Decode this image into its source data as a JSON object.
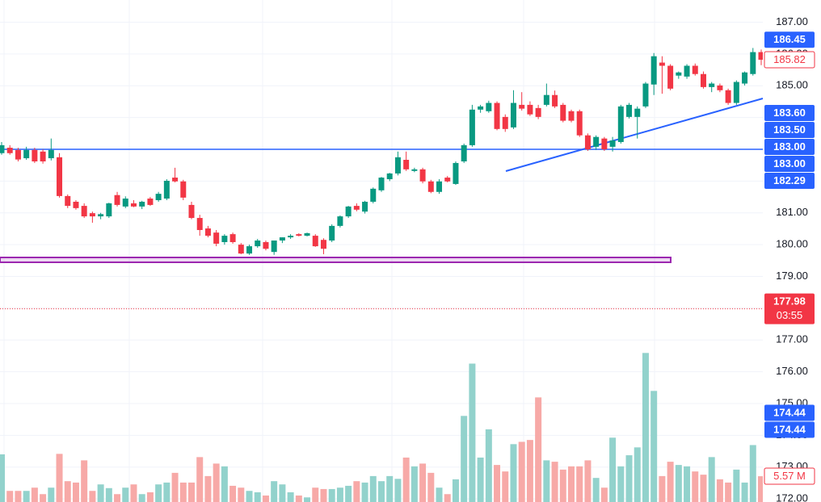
{
  "chart_data": {
    "type": "candlestick",
    "up_color": "#089981",
    "down_color": "#f23645",
    "volume_up_color": "#92d2cc",
    "volume_down_color": "#f7a9a7",
    "grid": true,
    "ylim": [
      171.9,
      187.7
    ],
    "yticks": [
      {
        "value": 172,
        "label": "172.00"
      },
      {
        "value": 173,
        "label": "173.00"
      },
      {
        "value": 174,
        "label": "174.00"
      },
      {
        "value": 175,
        "label": "175.00"
      },
      {
        "value": 176,
        "label": "176.00"
      },
      {
        "value": 177,
        "label": "177.00"
      },
      {
        "value": 178,
        "label": "178.00"
      },
      {
        "value": 179,
        "label": "179.00"
      },
      {
        "value": 180,
        "label": "180.00"
      },
      {
        "value": 181,
        "label": "181.00"
      },
      {
        "value": 182,
        "label": "182.00"
      },
      {
        "value": 183,
        "label": "183.00"
      },
      {
        "value": 184,
        "label": "184.00"
      },
      {
        "value": 185,
        "label": "185.00"
      },
      {
        "value": 186,
        "label": "186.00"
      },
      {
        "value": 187,
        "label": "187.00"
      }
    ],
    "volume_lim": [
      0,
      34
    ],
    "open": [
      182.88,
      183.05,
      182.98,
      182.72,
      182.98,
      182.93,
      182.72,
      182.75,
      181.53,
      181.35,
      181.22,
      180.99,
      180.89,
      180.89,
      181.56,
      181.2,
      181.3,
      181.2,
      181.45,
      181.4,
      181.45,
      182.11,
      181.99,
      181.25,
      180.84,
      180.51,
      180.38,
      180.08,
      180.33,
      180.0,
      179.72,
      179.95,
      180.08,
      179.77,
      180.13,
      180.23,
      180.33,
      180.28,
      180.28,
      180.15,
      180.13,
      180.59,
      180.89,
      181.22,
      181.04,
      181.35,
      181.71,
      182.06,
      182.24,
      182.67,
      182.32,
      182.37,
      181.99,
      181.66,
      182.11,
      181.91,
      182.62,
      183.13,
      184.25,
      184.2,
      184.46,
      184.02,
      183.69,
      184.4,
      184.4,
      184.3,
      184.4,
      184.71,
      184.4,
      184.2,
      184.2,
      183.44,
      183.08,
      183.34,
      183.08,
      183.23,
      184.02,
      184.02,
      184.35,
      185.04,
      185.73,
      185.63,
      185.32,
      185.29,
      185.63,
      185.37,
      184.96,
      185.01,
      184.86,
      184.46,
      185.07,
      185.37,
      186.06
    ],
    "high": [
      183.23,
      183.13,
      183.05,
      183.08,
      183.05,
      183.0,
      183.34,
      182.88,
      181.58,
      181.4,
      181.3,
      181.04,
      181.0,
      181.32,
      181.66,
      181.52,
      181.4,
      181.38,
      181.5,
      181.66,
      182.06,
      182.42,
      182.04,
      181.35,
      180.94,
      180.59,
      180.46,
      180.33,
      180.38,
      180.05,
      180.0,
      180.18,
      180.13,
      180.13,
      180.23,
      180.33,
      180.36,
      180.38,
      180.33,
      180.2,
      180.64,
      180.92,
      181.22,
      181.3,
      181.38,
      181.8,
      182.13,
      182.26,
      182.93,
      182.93,
      182.42,
      182.42,
      182.04,
      182.06,
      182.16,
      182.62,
      183.18,
      184.4,
      184.4,
      184.53,
      184.51,
      184.1,
      184.86,
      184.8,
      184.51,
      184.4,
      185.07,
      184.85,
      184.46,
      184.25,
      184.25,
      183.5,
      183.44,
      183.39,
      183.39,
      184.4,
      184.46,
      184.35,
      185.12,
      186.03,
      185.93,
      185.68,
      185.45,
      185.68,
      185.7,
      185.45,
      185.12,
      185.07,
      184.91,
      185.17,
      185.45,
      186.19,
      186.14
    ],
    "low": [
      182.83,
      182.83,
      182.62,
      182.67,
      182.57,
      182.55,
      182.65,
      181.48,
      181.15,
      181.1,
      180.84,
      180.69,
      180.8,
      180.84,
      181.2,
      181.15,
      181.18,
      181.12,
      181.22,
      181.35,
      181.4,
      181.96,
      181.4,
      180.8,
      180.28,
      180.23,
      179.95,
      180.0,
      180.03,
      179.7,
      179.68,
      179.9,
      179.82,
      179.68,
      180.05,
      180.18,
      180.26,
      180.26,
      179.93,
      179.7,
      180.08,
      180.54,
      180.84,
      181.05,
      180.98,
      181.3,
      181.66,
      182.0,
      182.18,
      182.32,
      182.28,
      181.93,
      181.62,
      181.6,
      181.96,
      181.88,
      182.57,
      183.08,
      184.15,
      184.15,
      183.6,
      183.55,
      183.64,
      184.22,
      184.05,
      183.95,
      184.35,
      184.3,
      183.85,
      183.85,
      183.39,
      182.95,
      182.98,
      182.95,
      182.93,
      183.18,
      183.97,
      183.34,
      184.3,
      184.71,
      184.75,
      184.86,
      185.22,
      185.22,
      185.32,
      184.91,
      184.8,
      184.8,
      184.4,
      184.4,
      185.01,
      185.32,
      185.65
    ],
    "close": [
      183.13,
      182.88,
      182.68,
      182.98,
      182.62,
      182.62,
      182.98,
      181.53,
      181.22,
      181.15,
      180.89,
      180.89,
      180.96,
      181.3,
      181.25,
      181.45,
      181.2,
      181.35,
      181.25,
      181.6,
      182.01,
      181.99,
      181.48,
      180.84,
      180.46,
      180.28,
      180.03,
      180.28,
      180.08,
      179.72,
      179.95,
      180.13,
      179.87,
      180.13,
      180.23,
      180.28,
      180.28,
      180.36,
      179.95,
      179.87,
      180.59,
      180.89,
      181.2,
      181.1,
      181.35,
      181.76,
      182.11,
      182.24,
      182.75,
      182.37,
      182.37,
      181.99,
      181.66,
      181.99,
      181.99,
      182.57,
      183.13,
      184.25,
      184.35,
      184.46,
      183.64,
      183.64,
      184.46,
      184.28,
      184.1,
      184.02,
      184.71,
      184.35,
      183.9,
      183.9,
      183.44,
      183.0,
      183.39,
      183.0,
      183.28,
      184.35,
      184.4,
      184.28,
      185.07,
      185.93,
      185.63,
      184.91,
      185.42,
      185.63,
      185.37,
      184.96,
      185.07,
      184.86,
      184.46,
      185.12,
      185.42,
      186.06,
      185.82
    ],
    "volume": [
      10.3,
      2.4,
      2.4,
      2.4,
      3.1,
      1.7,
      3.1,
      10.4,
      4.5,
      4.2,
      9.0,
      2.4,
      3.8,
      3.0,
      1.7,
      3.1,
      3.8,
      1.7,
      2.1,
      3.8,
      4.2,
      6.3,
      4.2,
      4.2,
      9.7,
      5.6,
      8.3,
      7.7,
      3.5,
      3.1,
      2.4,
      2.1,
      1.4,
      4.5,
      3.8,
      2.1,
      1.4,
      1.0,
      3.1,
      2.8,
      2.8,
      3.1,
      3.5,
      4.5,
      4.2,
      5.6,
      4.5,
      5.6,
      5.0,
      9.6,
      7.7,
      8.3,
      6.3,
      3.1,
      1.7,
      4.9,
      18.6,
      29.9,
      9.6,
      15.7,
      8.0,
      6.6,
      12.5,
      13.0,
      13.4,
      22.6,
      9.0,
      8.7,
      7.0,
      7.7,
      7.7,
      9.0,
      5.2,
      3.1,
      13.9,
      7.7,
      10.1,
      11.8,
      32.2,
      24.0,
      5.6,
      8.7,
      8.0,
      7.7,
      6.6,
      5.9,
      9.7,
      4.9,
      4.2,
      7.0,
      4.2,
      12.3,
      5.57
    ],
    "price_labels": [
      {
        "value": 186.45,
        "label": "186.45",
        "style": "blue"
      },
      {
        "value": 185.82,
        "label": "185.82",
        "style": "red-outline"
      },
      {
        "value": 183.6,
        "label": "183.60",
        "style": "blue"
      },
      {
        "value": 183.5,
        "label": "183.50",
        "style": "blue"
      },
      {
        "value": 183,
        "label": "183.00",
        "style": "blue"
      },
      {
        "value": 183,
        "label": "183.00",
        "style": "blue",
        "line": "solid"
      },
      {
        "value": 182.29,
        "label": "182.29",
        "style": "blue"
      },
      {
        "value": 177.98,
        "label": "177.98",
        "sublabel": "03:55",
        "style": "red",
        "line": "dotted"
      },
      {
        "value": 174.44,
        "label": "174.44",
        "style": "blue"
      },
      {
        "value": 174.44,
        "label": "174.44",
        "style": "blue"
      },
      {
        "value": 5.57,
        "label": "5.57 M",
        "style": "red-outline",
        "scale": "volume"
      }
    ]
  }
}
